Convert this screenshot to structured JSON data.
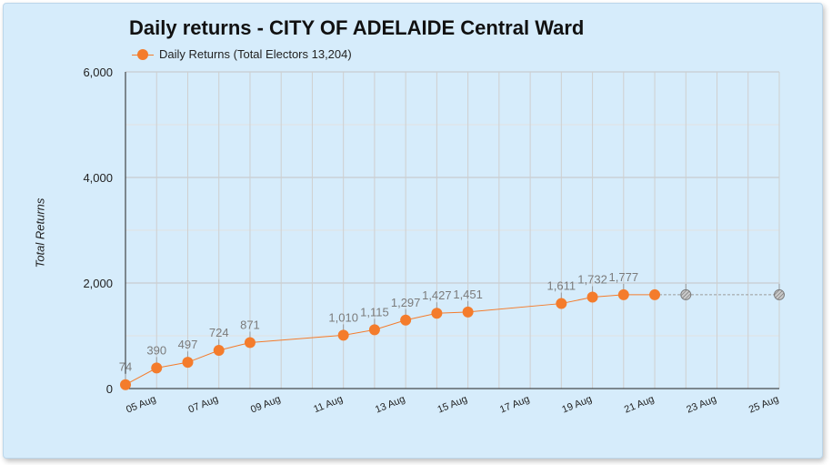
{
  "chart_data": {
    "type": "line",
    "title": "Daily returns - CITY OF ADELAIDE Central Ward",
    "ylabel": "Total Returns",
    "xlabel": "",
    "ylim": [
      0,
      6000
    ],
    "yticks": [
      0,
      2000,
      4000,
      6000
    ],
    "ytick_labels": [
      "0",
      "2,000",
      "4,000",
      "6,000"
    ],
    "xlim": [
      "2024-08-04",
      "2024-08-25"
    ],
    "xtick_labels": [
      "05 Aug",
      "07 Aug",
      "09 Aug",
      "11 Aug",
      "13 Aug",
      "15 Aug",
      "17 Aug",
      "19 Aug",
      "21 Aug",
      "23 Aug",
      "25 Aug"
    ],
    "xtick_dates": [
      "2024-08-05",
      "2024-08-07",
      "2024-08-09",
      "2024-08-11",
      "2024-08-13",
      "2024-08-15",
      "2024-08-17",
      "2024-08-19",
      "2024-08-21",
      "2024-08-23",
      "2024-08-25"
    ],
    "grid": true,
    "legend_position": "top-left",
    "series": [
      {
        "name": "Daily Returns (Total Electors 13,204)",
        "color": "#f47c2c",
        "points": [
          {
            "x": "2024-08-04",
            "y": 74,
            "label": "74"
          },
          {
            "x": "2024-08-05",
            "y": 390,
            "label": "390"
          },
          {
            "x": "2024-08-06",
            "y": 497,
            "label": "497"
          },
          {
            "x": "2024-08-07",
            "y": 724,
            "label": "724"
          },
          {
            "x": "2024-08-08",
            "y": 871,
            "label": "871"
          },
          {
            "x": "2024-08-11",
            "y": 1010,
            "label": "1,010"
          },
          {
            "x": "2024-08-12",
            "y": 1115,
            "label": "1,115"
          },
          {
            "x": "2024-08-13",
            "y": 1297,
            "label": "1,297"
          },
          {
            "x": "2024-08-14",
            "y": 1427,
            "label": "1,427"
          },
          {
            "x": "2024-08-15",
            "y": 1451,
            "label": "1,451"
          },
          {
            "x": "2024-08-18",
            "y": 1611,
            "label": "1,611"
          },
          {
            "x": "2024-08-19",
            "y": 1732,
            "label": "1,732"
          },
          {
            "x": "2024-08-20",
            "y": 1777,
            "label": "1,777"
          },
          {
            "x": "2024-08-21",
            "y": 1777,
            "label": ""
          }
        ]
      },
      {
        "name": "",
        "color": "#a9a9a9",
        "style": "dashed",
        "points": [
          {
            "x": "2024-08-21",
            "y": 1777
          },
          {
            "x": "2024-08-22",
            "y": 1777
          },
          {
            "x": "2024-08-25",
            "y": 1777
          }
        ],
        "markers": [
          "2024-08-22",
          "2024-08-25"
        ]
      }
    ]
  }
}
